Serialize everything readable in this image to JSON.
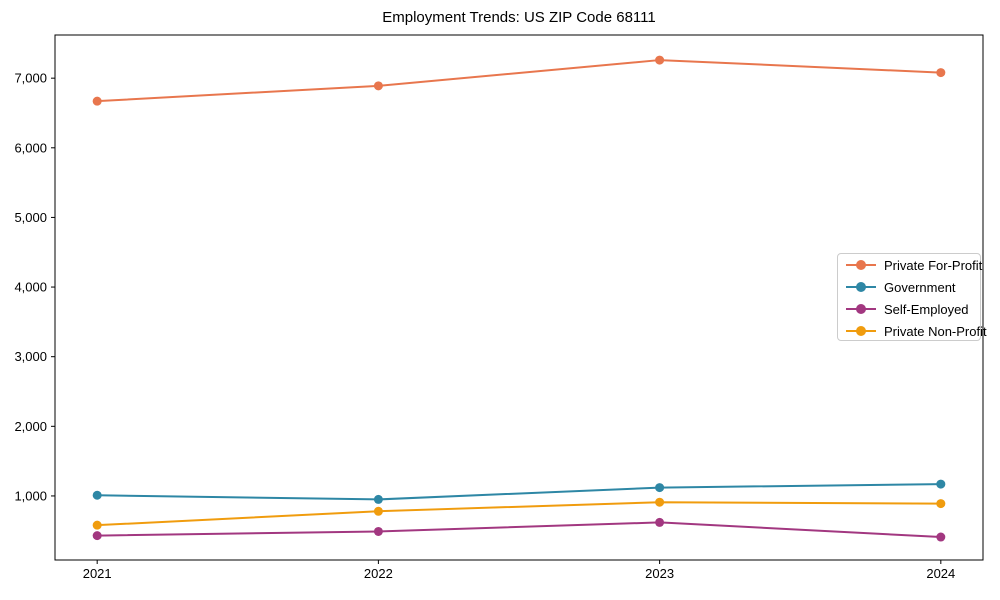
{
  "chart_data": {
    "type": "line",
    "title": "Employment Trends: US ZIP Code 68111",
    "categories": [
      "2021",
      "2022",
      "2023",
      "2024"
    ],
    "series": [
      {
        "name": "Private For-Profit",
        "color": "#e8764d",
        "values": [
          6670,
          6890,
          7260,
          7080
        ]
      },
      {
        "name": "Government",
        "color": "#2e87a5",
        "values": [
          1010,
          950,
          1120,
          1170
        ]
      },
      {
        "name": "Self-Employed",
        "color": "#a23780",
        "values": [
          430,
          490,
          620,
          410
        ]
      },
      {
        "name": "Private Non-Profit",
        "color": "#f09c0e",
        "values": [
          580,
          780,
          910,
          890
        ]
      }
    ],
    "xlabel": "",
    "ylabel": "",
    "ylim": [
      80,
      7620
    ],
    "yticks": [
      1000,
      2000,
      3000,
      4000,
      5000,
      6000,
      7000
    ],
    "grid": false,
    "marker": "circle",
    "legend_position": "center-right",
    "axis_color": "#000000"
  }
}
